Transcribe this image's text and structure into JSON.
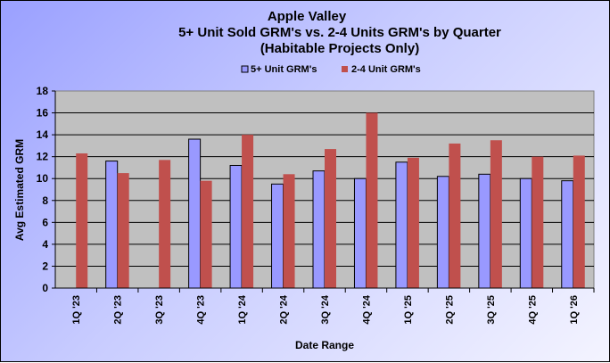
{
  "chart_data": {
    "type": "bar",
    "title": [
      "Apple Valley",
      "5+ Unit Sold GRM's vs. 2-4 Units GRM's by Quarter",
      "(Habitable Projects Only)"
    ],
    "xlabel": "Date Range",
    "ylabel": "Avg  Estimated  GRM",
    "ylim": [
      0,
      18
    ],
    "yticks": [
      "0",
      "2",
      "4",
      "6",
      "8",
      "10",
      "12",
      "14",
      "16",
      "18"
    ],
    "grid": true,
    "legend": "top-center",
    "categories": [
      "1Q '23",
      "2Q '23",
      "3Q '23",
      "4Q '23",
      "1Q '24",
      "2Q '24",
      "3Q '24",
      "4Q '24",
      "1Q '25",
      "2Q '25",
      "3Q '25",
      "4Q '25",
      "1Q '26"
    ],
    "series": [
      {
        "name": "5+ Unit GRM's",
        "color": "#9999ff",
        "values": [
          null,
          11.6,
          null,
          13.6,
          11.2,
          9.5,
          10.7,
          10.0,
          11.5,
          10.2,
          10.4,
          10.0,
          9.8
        ]
      },
      {
        "name": "2-4 Unit GRM's",
        "color": "#c0504d",
        "values": [
          12.3,
          10.5,
          11.7,
          9.8,
          14.0,
          10.4,
          12.7,
          16.0,
          11.9,
          13.2,
          13.5,
          12.0,
          12.1
        ]
      }
    ]
  }
}
